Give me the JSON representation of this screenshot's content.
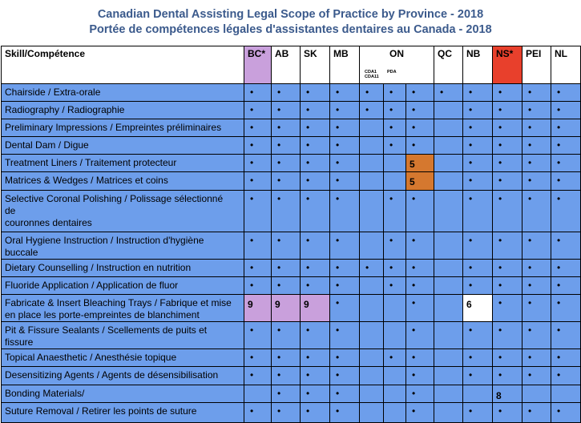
{
  "header": {
    "title": "Canadian Dental Assisting Legal Scope of Practice by Province - 2018",
    "subtitle": "Portée de compétences légales d'assistantes dentaires au Canada - 2018"
  },
  "table": {
    "skill_header": "Skill/Compétence",
    "columns": [
      {
        "label": "BC*",
        "color": "#c9a0dc"
      },
      {
        "label": "AB"
      },
      {
        "label": "SK"
      },
      {
        "label": "MB"
      },
      {
        "label": "ON",
        "span": 3,
        "sub": [
          [
            "CDA1",
            "CDA11"
          ],
          [
            "PDA"
          ]
        ]
      },
      {
        "label": "QC"
      },
      {
        "label": "NB"
      },
      {
        "label": "NS*",
        "color": "#e8402c"
      },
      {
        "label": "PEI"
      },
      {
        "label": "NL"
      }
    ],
    "rows": [
      {
        "skill": [
          "Chairside / Extra-orale"
        ],
        "cells": [
          "•",
          "•",
          "•",
          "•",
          "•",
          "•",
          "•",
          "•",
          "•",
          "•",
          "•",
          "•"
        ]
      },
      {
        "skill": [
          "Radiography / Radiographie"
        ],
        "cells": [
          "•",
          "•",
          "•",
          "•",
          "•",
          "•",
          "•",
          null,
          "•",
          "•",
          "•",
          "•"
        ]
      },
      {
        "skill": [
          "Preliminary Impressions / Empreintes préliminaires"
        ],
        "cells": [
          "•",
          "•",
          "•",
          "•",
          null,
          "•",
          "•",
          null,
          "•",
          "•",
          "•",
          "•"
        ]
      },
      {
        "skill": [
          "Dental Dam / Digue"
        ],
        "cells": [
          "•",
          "•",
          "•",
          "•",
          null,
          "•",
          "•",
          null,
          "•",
          "•",
          "•",
          "•"
        ]
      },
      {
        "skill": [
          "Treatment Liners / Traitement protecteur"
        ],
        "cells": [
          "•",
          "•",
          "•",
          "•",
          null,
          null,
          {
            "text": "5",
            "color": "#d5782f"
          },
          null,
          "•",
          "•",
          "•",
          "•"
        ]
      },
      {
        "skill": [
          "Matrices & Wedges / Matrices et coins"
        ],
        "cells": [
          "•",
          "•",
          "•",
          "•",
          null,
          null,
          {
            "text": "5",
            "color": "#d5782f"
          },
          null,
          "•",
          "•",
          "•",
          "•"
        ]
      },
      {
        "skill": [
          "Selective Coronal Polishing / Polissage sélectionné",
          "de",
          "couronnes dentaires"
        ],
        "cells": [
          "•",
          "•",
          "•",
          "•",
          null,
          "•",
          "•",
          null,
          "•",
          "•",
          "•",
          "•"
        ]
      },
      {
        "skill": [
          "Oral Hygiene Instruction / Instruction d'hygiène",
          "buccale"
        ],
        "cells": [
          "•",
          "•",
          "•",
          "•",
          null,
          "•",
          "•",
          null,
          "•",
          "•",
          "•",
          "•"
        ]
      },
      {
        "skill": [
          "Dietary Counselling / Instruction en nutrition"
        ],
        "cells": [
          "•",
          "•",
          "•",
          "•",
          "•",
          "•",
          "•",
          null,
          "•",
          "•",
          "•",
          "•"
        ]
      },
      {
        "skill": [
          "Fluoride Application / Application de fluor"
        ],
        "cells": [
          "•",
          "•",
          "•",
          "•",
          null,
          "•",
          "•",
          null,
          "•",
          "•",
          "•",
          "•"
        ]
      },
      {
        "skill": [
          "Fabricate & Insert Bleaching Trays / Fabrique et mise",
          "en place les porte-empreintes de blanchiment"
        ],
        "cells": [
          {
            "text": "9",
            "color": "#c9a0dc"
          },
          {
            "text": "9",
            "color": "#c9a0dc"
          },
          {
            "text": "9",
            "color": "#c9a0dc"
          },
          "•",
          null,
          null,
          "•",
          null,
          {
            "text": "6",
            "color": "#ffffff"
          },
          "•",
          "•",
          "•"
        ]
      },
      {
        "skill": [
          "Pit & Fissure Sealants / Scellements de puits et",
          "fissure"
        ],
        "cells": [
          "•",
          "•",
          "•",
          "•",
          null,
          null,
          "•",
          null,
          "•",
          "•",
          "•",
          "•"
        ]
      },
      {
        "skill": [
          "Topical Anaesthetic / Anesthésie topique"
        ],
        "cells": [
          "•",
          "•",
          "•",
          "•",
          null,
          "•",
          "•",
          null,
          "•",
          "•",
          "•",
          "•"
        ]
      },
      {
        "skill": [
          "Desensitizing Agents / Agents de désensibilisation"
        ],
        "cells": [
          "•",
          "•",
          "•",
          "•",
          null,
          null,
          "•",
          null,
          "•",
          "•",
          "•",
          "•"
        ]
      },
      {
        "skill": [
          "Bonding Materials/"
        ],
        "cells": [
          null,
          "•",
          "•",
          "•",
          null,
          null,
          "•",
          null,
          null,
          {
            "text": "8"
          },
          null,
          null
        ]
      },
      {
        "skill": [
          "Suture Removal / Retirer les points de suture"
        ],
        "cells": [
          "•",
          "•",
          "•",
          "•",
          null,
          null,
          "•",
          null,
          "•",
          "•",
          "•",
          "•"
        ]
      }
    ]
  }
}
